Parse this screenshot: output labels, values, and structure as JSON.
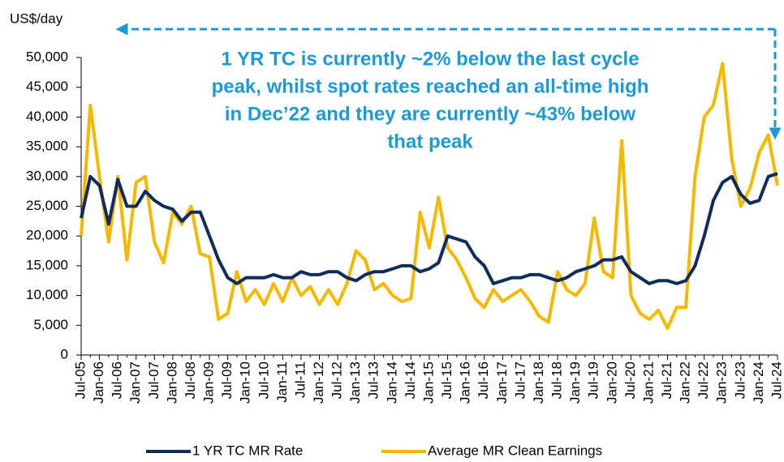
{
  "chart_data": {
    "type": "line",
    "y_label": "US$/day",
    "annotation": [
      "1 YR TC is currently ~2% below the last cycle",
      "peak, whilst spot rates reached an all-time high",
      "in Dec’22 and they are currently ~43% below",
      "that peak"
    ],
    "categories": [
      "Jul-05",
      null,
      "Jan-06",
      null,
      "Jul-06",
      null,
      "Jan-07",
      null,
      "Jul-07",
      null,
      "Jan-08",
      null,
      "Jul-08",
      null,
      "Jan-09",
      null,
      "Jul-09",
      null,
      "Jan-10",
      null,
      "Jul-10",
      null,
      "Jan-11",
      null,
      "Jul-11",
      null,
      "Jan-12",
      null,
      "Jul-12",
      null,
      "Jan-13",
      null,
      "Jul-13",
      null,
      "Jan-14",
      null,
      "Jul-14",
      null,
      "Jan-15",
      null,
      "Jul-15",
      null,
      "Jan-16",
      null,
      "Jul-16",
      null,
      "Jan-17",
      null,
      "Jul-17",
      null,
      "Jan-18",
      null,
      "Jul-18",
      null,
      "Jan-19",
      null,
      "Jul-19",
      null,
      "Jan-20",
      null,
      "Jul-20",
      null,
      "Jan-21",
      null,
      "Jul-21",
      null,
      "Jan-22",
      null,
      "Jul-22",
      null,
      "Jan-23",
      null,
      "Jul-23",
      null,
      "Jan-24",
      null,
      "Jul-24"
    ],
    "series": [
      {
        "name": "1 YR TC MR Rate",
        "color": "#0f2d5c",
        "values": [
          23000,
          30000,
          28500,
          22000,
          29500,
          25000,
          25000,
          27500,
          26000,
          25000,
          24500,
          22500,
          24000,
          24000,
          20000,
          16000,
          13000,
          12000,
          13000,
          13000,
          13000,
          13500,
          13000,
          13000,
          14000,
          13500,
          13500,
          14000,
          14000,
          13000,
          12500,
          13500,
          14000,
          14000,
          14500,
          15000,
          15000,
          14000,
          14500,
          15500,
          20000,
          19500,
          19000,
          16500,
          15000,
          12000,
          12500,
          13000,
          13000,
          13500,
          13500,
          13000,
          12500,
          13000,
          14000,
          14500,
          15000,
          16000,
          16000,
          16500,
          14000,
          13000,
          12000,
          12500,
          12500,
          12000,
          12500,
          15000,
          20000,
          26000,
          29000,
          30000,
          27000,
          25500,
          26000,
          30000,
          30500
        ]
      },
      {
        "name": "Average MR Clean Earnings",
        "color": "#f7b900",
        "values": [
          20000,
          42000,
          30000,
          19000,
          30000,
          16000,
          29000,
          30000,
          19000,
          15500,
          24000,
          22000,
          25000,
          17000,
          16500,
          6000,
          7000,
          14000,
          9000,
          11000,
          8500,
          12000,
          9000,
          13000,
          10000,
          11500,
          8500,
          11000,
          8500,
          12000,
          17500,
          16000,
          11000,
          12000,
          10000,
          9000,
          9500,
          24000,
          18000,
          26500,
          18000,
          16000,
          13000,
          9500,
          8000,
          11000,
          9000,
          10000,
          11000,
          9000,
          6500,
          5500,
          14000,
          11000,
          10000,
          12000,
          23000,
          14000,
          13000,
          36000,
          10000,
          7000,
          6000,
          7500,
          4500,
          8000,
          8000,
          30000,
          40000,
          42000,
          49000,
          33000,
          25000,
          28000,
          34000,
          37000,
          28500
        ]
      }
    ],
    "ylim": [
      0,
      50000
    ],
    "yticks": [
      0,
      {
        "value": 5000,
        "label": "5,000"
      },
      {
        "value": 10000,
        "label": "10,000"
      },
      {
        "value": 15000,
        "label": "15,000"
      },
      {
        "value": 20000,
        "label": "20,000"
      },
      {
        "value": 25000,
        "label": "25,000"
      },
      {
        "value": 30000,
        "label": "30,000"
      },
      {
        "value": 35000,
        "label": "35,000"
      },
      {
        "value": 40000,
        "label": "40,000"
      },
      {
        "value": 45000,
        "label": "45,000"
      },
      {
        "value": 50000,
        "label": "50,000"
      }
    ],
    "grid": false,
    "legend": "bottom"
  }
}
